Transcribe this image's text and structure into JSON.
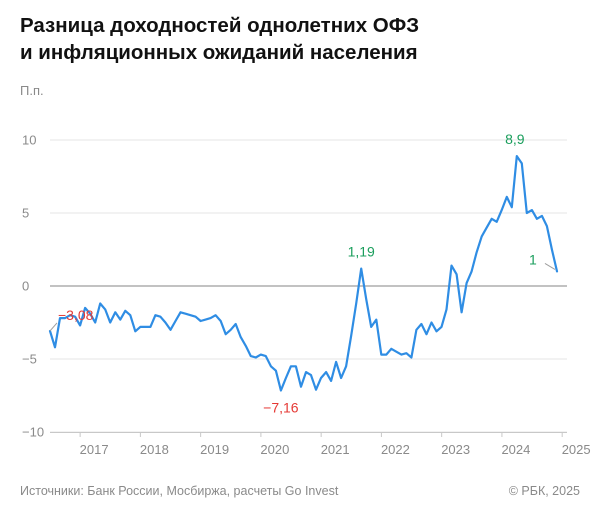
{
  "header": {
    "title_line1": "Разница доходностей однолетних ОФЗ",
    "title_line2": "и инфляционных ожиданий населения"
  },
  "footer": {
    "source": "Источники: Банк России, Мосбиржа, расчеты Go Invest",
    "copyright": "© РБК, 2025"
  },
  "chart_data": {
    "type": "line",
    "ylabel": "П.п.",
    "ylim": [
      -10,
      10
    ],
    "yticks": [
      10,
      5,
      0,
      -5,
      -10
    ],
    "ytick_labels": [
      "10",
      "5",
      "0",
      "−5",
      "−10"
    ],
    "x_labels": [
      "2017",
      "2018",
      "2019",
      "2020",
      "2021",
      "2022",
      "2023",
      "2024",
      "2025"
    ],
    "x_label_positions": [
      2017.0,
      2018.0,
      2019.0,
      2020.0,
      2021.0,
      2022.0,
      2023.0,
      2024.0,
      2025.0
    ],
    "xlim": [
      2016.5,
      2025.08
    ],
    "grid": "horizontal",
    "zero_line": true,
    "colors": {
      "line": "#2f8de4",
      "positive_label": "#1a9e5c",
      "negative_label": "#e53935",
      "grid": "#e6e6e6",
      "zero": "#9e9e9e"
    },
    "series": [
      {
        "values": [
          -3.08,
          -4.2,
          -2.2,
          -2.2,
          -2.0,
          -2.1,
          -2.7,
          -1.5,
          -1.9,
          -2.5,
          -1.2,
          -1.6,
          -2.5,
          -1.8,
          -2.3,
          -1.7,
          -2.0,
          -3.1,
          -2.8,
          -2.8,
          -2.8,
          -2.0,
          -2.1,
          -2.5,
          -3.0,
          -2.4,
          -1.8,
          -1.9,
          -2.0,
          -2.1,
          -2.4,
          -2.3,
          -2.2,
          -2.0,
          -2.4,
          -3.3,
          -3.0,
          -2.6,
          -3.5,
          -4.1,
          -4.8,
          -4.9,
          -4.7,
          -4.8,
          -5.5,
          -5.8,
          -7.16,
          -6.3,
          -5.5,
          -5.5,
          -6.9,
          -5.9,
          -6.1,
          -7.1,
          -6.3,
          -5.9,
          -6.5,
          -5.2,
          -6.3,
          -5.5,
          -3.4,
          -1.2,
          1.19,
          -0.9,
          -2.8,
          -2.3,
          -4.7,
          -4.7,
          -4.3,
          -4.5,
          -4.7,
          -4.6,
          -4.9,
          -3.0,
          -2.6,
          -3.3,
          -2.5,
          -3.1,
          -2.8,
          -1.6,
          1.4,
          0.8,
          -1.8,
          0.2,
          1.0,
          2.3,
          3.4,
          4.0,
          4.6,
          4.4,
          5.2,
          6.1,
          5.4,
          8.9,
          8.4,
          5.0,
          5.2,
          4.6,
          4.8,
          4.1,
          2.5,
          1.0
        ],
        "x_start": 2016.5,
        "step": 0.0833
      }
    ],
    "annotations": [
      {
        "text": "−3,08",
        "index": 0,
        "value": -3.08,
        "color": "negative"
      },
      {
        "text": "−7,16",
        "index": 46,
        "value": -7.16,
        "color": "negative"
      },
      {
        "text": "1,19",
        "index": 62,
        "value": 1.19,
        "color": "positive"
      },
      {
        "text": "8,9",
        "index": 93,
        "value": 8.9,
        "color": "positive"
      },
      {
        "text": "1",
        "index": 101,
        "value": 1.0,
        "color": "positive"
      }
    ]
  }
}
